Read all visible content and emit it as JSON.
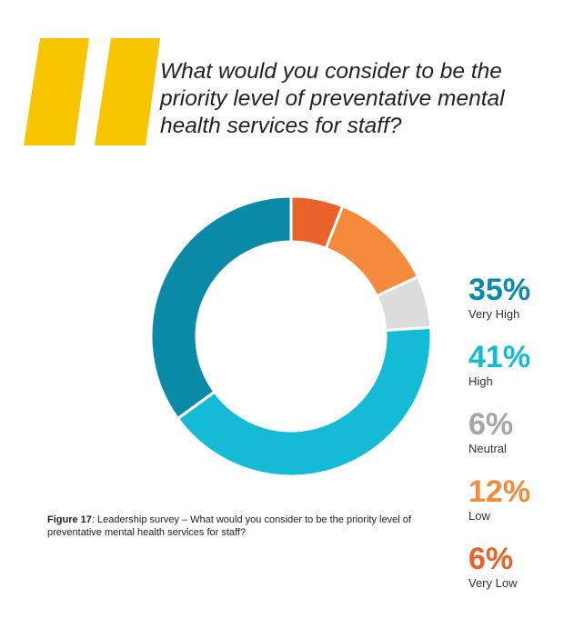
{
  "question": "What would you consider to be the priority level of preventative mental health services for staff?",
  "caption": {
    "label": "Figure 17",
    "text": ": Leadership survey – What would you consider to be the priority level of preventative mental health services for staff?"
  },
  "colors": {
    "quote": "#f7c600",
    "very_high": "#0a8aa7",
    "high": "#14bbd6",
    "neutral": "#a6a6a6",
    "low": "#f58a3c",
    "very_low": "#e8622a",
    "neutral_slice": "#dcdcdc"
  },
  "chart_data": {
    "type": "pie",
    "donut": true,
    "categories": [
      "Very Low",
      "Low",
      "Neutral",
      "High",
      "Very High"
    ],
    "values": [
      6,
      12,
      6,
      41,
      35
    ],
    "labels": [
      "6%",
      "12%",
      "6%",
      "41%",
      "35%"
    ]
  },
  "legend": [
    {
      "pct": "35%",
      "label": "Very High",
      "color": "#0a8aa7"
    },
    {
      "pct": "41%",
      "label": "High",
      "color": "#14bbd6"
    },
    {
      "pct": "6%",
      "label": "Neutral",
      "color": "#a6a6a6"
    },
    {
      "pct": "12%",
      "label": "Low",
      "color": "#f58a3c"
    },
    {
      "pct": "6%",
      "label": "Very Low",
      "color": "#e8622a"
    }
  ]
}
